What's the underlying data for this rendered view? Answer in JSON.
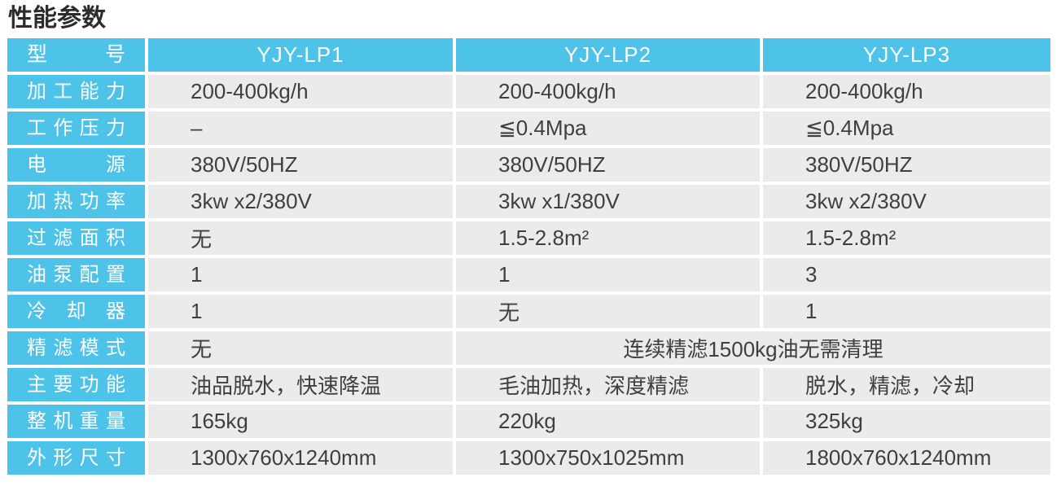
{
  "title": "性能参数",
  "colors": {
    "header_bg": "#4dc3ea",
    "cell_bg": "#ebebeb",
    "cell_text": "#3f3f3f",
    "header_text": "#ffffff"
  },
  "table": {
    "header": {
      "label": "型　号",
      "models": [
        "YJY-LP1",
        "YJY-LP2",
        "YJY-LP3"
      ]
    },
    "rows": [
      {
        "label": "加工能力",
        "cells": [
          {
            "text": "200-400kg/h"
          },
          {
            "text": "200-400kg/h"
          },
          {
            "text": "200-400kg/h"
          }
        ]
      },
      {
        "label": "工作压力",
        "cells": [
          {
            "text": "–"
          },
          {
            "text": "≦0.4Mpa"
          },
          {
            "text": "≦0.4Mpa"
          }
        ]
      },
      {
        "label": "电　源",
        "cells": [
          {
            "text": "380V/50HZ"
          },
          {
            "text": "380V/50HZ"
          },
          {
            "text": "380V/50HZ"
          }
        ]
      },
      {
        "label": "加热功率",
        "cells": [
          {
            "text": "3kw x2/380V"
          },
          {
            "text": "3kw x1/380V"
          },
          {
            "text": "3kw x2/380V"
          }
        ]
      },
      {
        "label": "过滤面积",
        "cells": [
          {
            "text": "无"
          },
          {
            "text": "1.5-2.8m²"
          },
          {
            "text": "1.5-2.8m²"
          }
        ]
      },
      {
        "label": "油泵配置",
        "cells": [
          {
            "text": "1"
          },
          {
            "text": "1"
          },
          {
            "text": "3"
          }
        ]
      },
      {
        "label": "冷　却　器",
        "cells": [
          {
            "text": "1"
          },
          {
            "text": "无"
          },
          {
            "text": "1"
          }
        ]
      },
      {
        "label": "精滤模式",
        "cells": [
          {
            "text": "无"
          },
          {
            "text": "连续精滤1500kg油无需清理",
            "span": 2,
            "align": "center"
          }
        ]
      },
      {
        "label": "主要功能",
        "cells": [
          {
            "text": "油品脱水，快速降温"
          },
          {
            "text": "毛油加热，深度精滤"
          },
          {
            "text": "脱水，精滤，冷却"
          }
        ]
      },
      {
        "label": "整机重量",
        "cells": [
          {
            "text": "165kg"
          },
          {
            "text": "220kg"
          },
          {
            "text": "325kg"
          }
        ]
      },
      {
        "label": "外形尺寸",
        "cells": [
          {
            "text": "1300x760x1240mm"
          },
          {
            "text": "1300x750x1025mm"
          },
          {
            "text": "1800x760x1240mm"
          }
        ]
      }
    ]
  }
}
